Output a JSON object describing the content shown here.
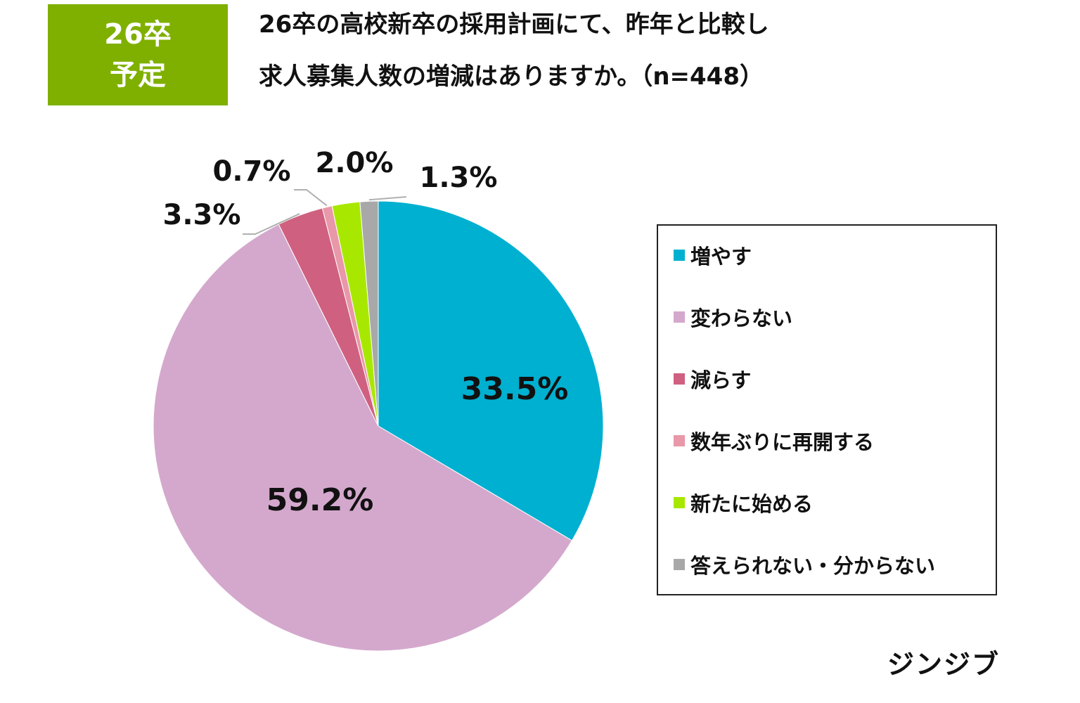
{
  "badge": {
    "line1": "26卒",
    "line2": "予定"
  },
  "chart_data": {
    "type": "pie",
    "title_lines": [
      "26卒の高校新卒の採用計画にて、昨年と比較し",
      "求人募集人数の増減はありますか。（n=448）"
    ],
    "n": 448,
    "categories": [
      "増やす",
      "変わらない",
      "減らす",
      "数年ぶりに再開する",
      "新たに始める",
      "答えられない・分からない"
    ],
    "values": [
      33.5,
      59.2,
      3.3,
      0.7,
      2.0,
      1.3
    ],
    "value_labels": [
      "33.5%",
      "59.2%",
      "3.3%",
      "0.7%",
      "2.0%",
      "1.3%"
    ],
    "colors": [
      "#00b0d0",
      "#d4a8cc",
      "#d06080",
      "#e898a8",
      "#a8e800",
      "#a8a8a8"
    ],
    "start_angle": "12 o'clock",
    "direction": "clockwise",
    "legend_position": "right"
  },
  "footer": {
    "brand": "ジンジブ"
  }
}
